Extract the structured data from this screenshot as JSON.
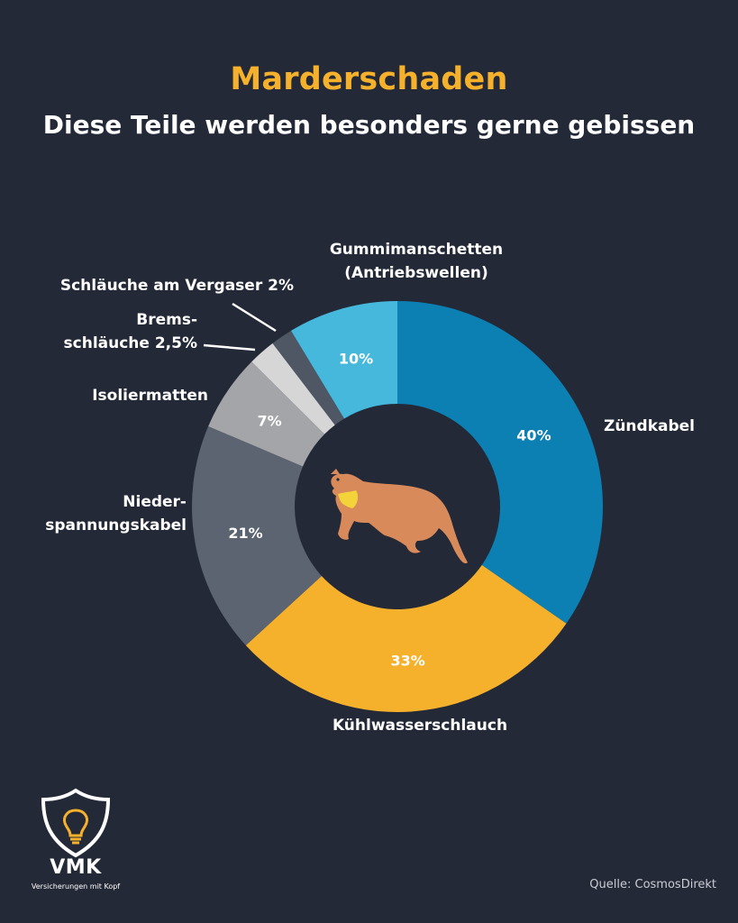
{
  "header": {
    "title": "Marderschaden",
    "subtitle": "Diese Teile werden besonders gerne gebissen"
  },
  "chart_data": {
    "type": "pie",
    "variant": "donut",
    "unit": "%",
    "slices": [
      {
        "label_lines": [
          "Zündkabel"
        ],
        "value": 40,
        "value_label": "40%",
        "color": "#0C80B3"
      },
      {
        "label_lines": [
          "Kühlwasserschlauch"
        ],
        "value": 33,
        "value_label": "33%",
        "color": "#F5B12B"
      },
      {
        "label_lines": [
          "Nieder-",
          "spannungskabel"
        ],
        "value": 21,
        "value_label": "21%",
        "color": "#5B6470"
      },
      {
        "label_lines": [
          "Isoliermatten"
        ],
        "value": 7,
        "value_label": "7%",
        "color": "#A3A5A8"
      },
      {
        "label_lines": [
          "Brems-",
          "schläuche 2,5%"
        ],
        "value": 2.5,
        "value_label": "",
        "color": "#D6D6D6"
      },
      {
        "label_lines": [
          "Schläuche am Vergaser 2%"
        ],
        "value": 2,
        "value_label": "",
        "color": "#4E5763"
      },
      {
        "label_lines": [
          "Gummimanschetten",
          "(Antriebswellen)"
        ],
        "value": 10,
        "value_label": "10%",
        "color": "#45B8DC"
      }
    ],
    "center_icon": "marten-icon"
  },
  "footer": {
    "logo_icon": "shield-lightbulb-icon",
    "logo_text": "VMK",
    "logo_tagline": "Versicherungen mit Kopf",
    "source": "Quelle: CosmosDirekt"
  },
  "colors": {
    "background": "#242938",
    "accent": "#F5B12B",
    "marten": "#D98A5A",
    "marten_throat": "#F3D23A"
  }
}
